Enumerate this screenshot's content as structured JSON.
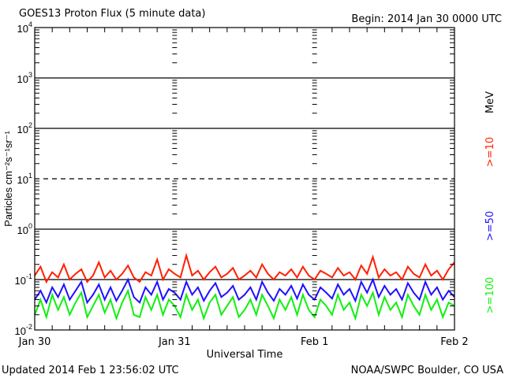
{
  "chart_data": {
    "type": "line",
    "title": "GOES13 Proton Flux (5 minute data)",
    "begin_label": "Begin: 2014 Jan 30 0000 UTC",
    "ylabel": "Particles cm⁻²s⁻¹sr⁻¹",
    "xlabel": "Universal Time",
    "y_scale": "log",
    "ylim": [
      0.01,
      10000
    ],
    "y_ticks": [
      {
        "base": "10",
        "exp": "4"
      },
      {
        "base": "10",
        "exp": "3"
      },
      {
        "base": "10",
        "exp": "2"
      },
      {
        "base": "10",
        "exp": "1"
      },
      {
        "base": "10",
        "exp": "0"
      },
      {
        "base": "10",
        "exp": "-1"
      },
      {
        "base": "10",
        "exp": "-2"
      }
    ],
    "x_ticks": [
      "Jan 30",
      "Jan 31",
      "Feb 1",
      "Feb 2"
    ],
    "x_start": "2014-01-30 00:00 UTC",
    "x_step_minutes": 60,
    "grid": "horizontal lines at each decade; 10^1 dashed",
    "legend_placement": "right",
    "legend_unit": "MeV",
    "series": [
      {
        "name": ">=10",
        "color": "#ff2000",
        "values": [
          0.12,
          0.18,
          0.09,
          0.14,
          0.11,
          0.2,
          0.1,
          0.13,
          0.16,
          0.09,
          0.12,
          0.22,
          0.11,
          0.15,
          0.1,
          0.13,
          0.19,
          0.11,
          0.09,
          0.14,
          0.12,
          0.25,
          0.1,
          0.16,
          0.13,
          0.11,
          0.3,
          0.12,
          0.15,
          0.1,
          0.14,
          0.18,
          0.11,
          0.13,
          0.17,
          0.1,
          0.12,
          0.15,
          0.11,
          0.2,
          0.13,
          0.1,
          0.14,
          0.12,
          0.16,
          0.11,
          0.18,
          0.12,
          0.1,
          0.15,
          0.13,
          0.11,
          0.17,
          0.12,
          0.14,
          0.1,
          0.19,
          0.13,
          0.28,
          0.11,
          0.16,
          0.12,
          0.14,
          0.1,
          0.18,
          0.13,
          0.11,
          0.2,
          0.12,
          0.15,
          0.1,
          0.16,
          0.22
        ]
      },
      {
        "name": ">=50",
        "color": "#2010ff",
        "values": [
          0.04,
          0.06,
          0.035,
          0.07,
          0.045,
          0.08,
          0.04,
          0.06,
          0.09,
          0.035,
          0.05,
          0.08,
          0.04,
          0.07,
          0.038,
          0.06,
          0.1,
          0.045,
          0.035,
          0.07,
          0.05,
          0.09,
          0.04,
          0.065,
          0.055,
          0.04,
          0.09,
          0.05,
          0.07,
          0.038,
          0.06,
          0.085,
          0.045,
          0.055,
          0.075,
          0.04,
          0.05,
          0.07,
          0.04,
          0.09,
          0.055,
          0.038,
          0.065,
          0.05,
          0.075,
          0.042,
          0.08,
          0.05,
          0.04,
          0.07,
          0.055,
          0.042,
          0.08,
          0.05,
          0.065,
          0.038,
          0.09,
          0.055,
          0.1,
          0.045,
          0.075,
          0.05,
          0.065,
          0.04,
          0.085,
          0.055,
          0.04,
          0.09,
          0.05,
          0.07,
          0.04,
          0.06,
          0.045
        ]
      },
      {
        "name": ">=100",
        "color": "#10f010",
        "values": [
          0.02,
          0.04,
          0.018,
          0.05,
          0.025,
          0.045,
          0.02,
          0.035,
          0.055,
          0.018,
          0.03,
          0.05,
          0.022,
          0.04,
          0.017,
          0.035,
          0.06,
          0.02,
          0.018,
          0.045,
          0.025,
          0.05,
          0.02,
          0.04,
          0.03,
          0.018,
          0.05,
          0.025,
          0.04,
          0.017,
          0.035,
          0.05,
          0.02,
          0.03,
          0.045,
          0.018,
          0.025,
          0.04,
          0.02,
          0.05,
          0.03,
          0.017,
          0.04,
          0.025,
          0.045,
          0.02,
          0.05,
          0.025,
          0.018,
          0.04,
          0.03,
          0.02,
          0.05,
          0.025,
          0.035,
          0.017,
          0.05,
          0.03,
          0.055,
          0.02,
          0.045,
          0.025,
          0.035,
          0.018,
          0.05,
          0.03,
          0.02,
          0.05,
          0.025,
          0.04,
          0.018,
          0.035,
          0.03
        ]
      }
    ]
  },
  "footer": {
    "updated": "Updated 2014 Feb  1 23:56:02 UTC",
    "source": "NOAA/SWPC Boulder, CO USA"
  }
}
